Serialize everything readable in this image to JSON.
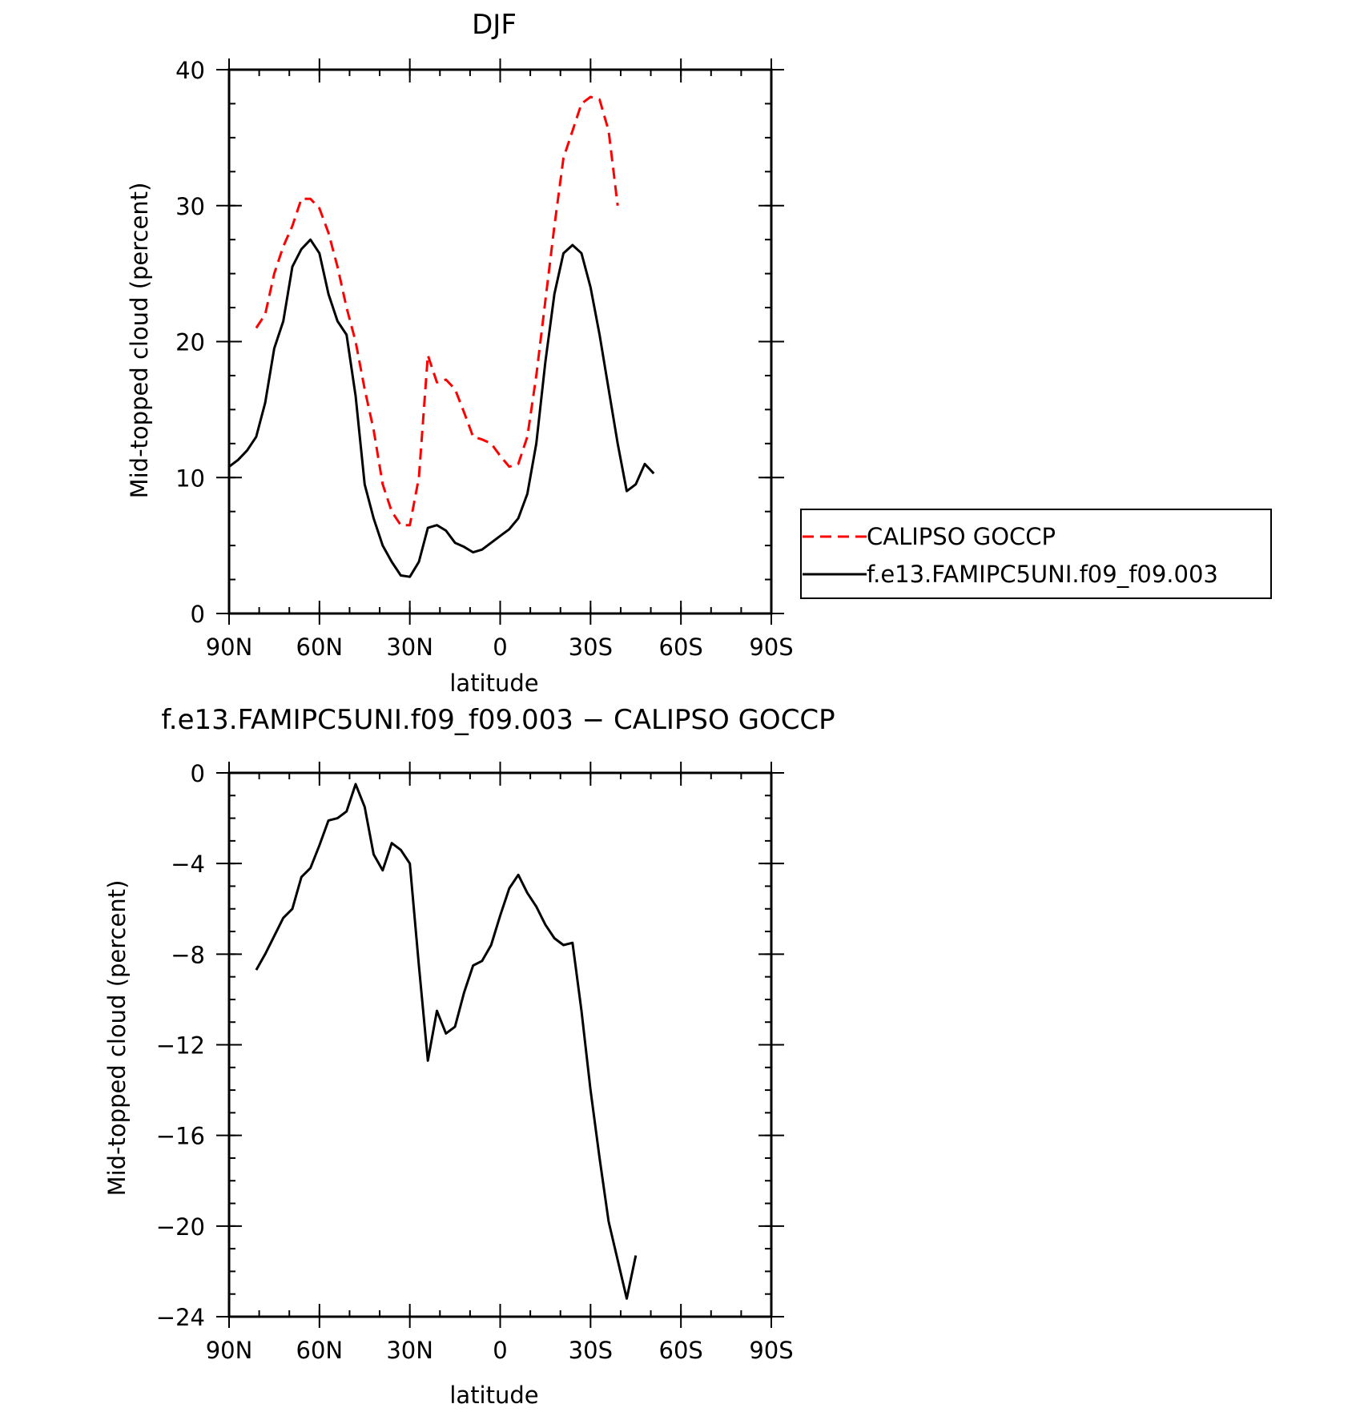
{
  "chart_data": [
    {
      "type": "line",
      "title": "DJF",
      "xlabel": "latitude",
      "ylabel": "Mid-topped cloud (percent)",
      "xlim": [
        90,
        -90
      ],
      "ylim": [
        0,
        40
      ],
      "xticks": [
        90,
        60,
        30,
        0,
        -30,
        -60,
        -90
      ],
      "xtick_labels": [
        "90N",
        "60N",
        "30N",
        "0",
        "30S",
        "60S",
        "90S"
      ],
      "yticks": [
        0,
        10,
        20,
        30,
        40
      ],
      "ytick_labels": [
        "0",
        "10",
        "20",
        "30",
        "40"
      ],
      "legend_position": "right",
      "series": [
        {
          "name": "CALIPSO GOCCP",
          "color": "#ff0000",
          "dash": "dashed",
          "x": [
            81,
            78,
            75,
            72,
            69,
            66,
            63,
            60,
            57,
            54,
            51,
            48,
            45,
            42,
            39,
            36,
            33,
            30,
            27,
            24,
            21,
            18,
            15,
            12,
            9,
            6,
            3,
            0,
            -3,
            -6,
            -9,
            -12,
            -15,
            -18,
            -21,
            -24,
            -27,
            -30,
            -33,
            -36,
            -39,
            -42,
            -45,
            -48,
            -51,
            -54,
            -57,
            -60,
            -63,
            -66,
            -69,
            -72,
            -75,
            -78,
            -81
          ],
          "y": [
            21.0,
            22.0,
            25.0,
            27.0,
            28.5,
            30.5,
            30.5,
            29.8,
            28.0,
            25.5,
            22.5,
            20.0,
            16.5,
            13.5,
            9.5,
            7.5,
            6.5,
            6.5,
            10.0,
            19.0,
            17.0,
            17.2,
            16.5,
            14.8,
            13.0,
            12.8,
            12.5,
            11.6,
            10.8,
            11.0,
            13.0,
            17.5,
            23.0,
            28.5,
            33.5,
            35.5,
            37.5,
            38.0,
            37.8,
            35.5,
            30.0,
            null,
            null,
            null,
            null,
            null,
            null,
            null,
            null,
            null,
            null,
            null,
            null,
            null,
            null
          ]
        },
        {
          "name": "f.e13.FAMIPC5UNI.f09_f09.003",
          "color": "#000000",
          "dash": "solid",
          "x": [
            90,
            87,
            84,
            81,
            78,
            75,
            72,
            69,
            66,
            63,
            60,
            57,
            54,
            51,
            48,
            45,
            42,
            39,
            36,
            33,
            30,
            27,
            24,
            21,
            18,
            15,
            12,
            9,
            6,
            3,
            0,
            -3,
            -6,
            -9,
            -12,
            -15,
            -18,
            -21,
            -24,
            -27,
            -30,
            -33,
            -36,
            -39,
            -42,
            -45,
            -48,
            -51,
            -54,
            -57,
            -60,
            -63,
            -66,
            -69,
            -72,
            -75,
            -78,
            -81,
            -84,
            -87,
            -90
          ],
          "y": [
            10.8,
            11.3,
            12.0,
            13.0,
            15.5,
            19.5,
            21.5,
            25.5,
            26.8,
            27.5,
            26.5,
            23.5,
            21.5,
            20.5,
            16.0,
            9.5,
            7.0,
            5.0,
            3.8,
            2.8,
            2.7,
            3.8,
            6.3,
            6.5,
            6.1,
            5.2,
            4.9,
            4.5,
            4.7,
            5.2,
            5.7,
            6.2,
            7.0,
            8.8,
            12.5,
            18.5,
            23.5,
            26.5,
            27.1,
            26.5,
            24.0,
            20.5,
            16.5,
            12.5,
            9.0,
            9.5,
            11.0,
            10.3,
            null,
            null,
            null,
            null,
            null,
            null,
            null,
            null,
            null,
            null,
            null,
            null,
            null
          ]
        }
      ]
    },
    {
      "type": "line",
      "title": "f.e13.FAMIPC5UNI.f09_f09.003 − CALIPSO GOCCP",
      "xlabel": "latitude",
      "ylabel": "Mid-topped cloud (percent)",
      "xlim": [
        90,
        -90
      ],
      "ylim": [
        -24,
        0
      ],
      "xticks": [
        90,
        60,
        30,
        0,
        -30,
        -60,
        -90
      ],
      "xtick_labels": [
        "90N",
        "60N",
        "30N",
        "0",
        "30S",
        "60S",
        "90S"
      ],
      "yticks": [
        0,
        -4,
        -8,
        -12,
        -16,
        -20,
        -24
      ],
      "ytick_labels": [
        "0",
        "−4",
        "−8",
        "−12",
        "−16",
        "−20",
        "−24"
      ],
      "series": [
        {
          "color": "#000000",
          "dash": "solid",
          "x": [
            81,
            78,
            75,
            72,
            69,
            66,
            63,
            60,
            57,
            54,
            51,
            48,
            45,
            42,
            39,
            36,
            33,
            30,
            27,
            24,
            21,
            18,
            15,
            12,
            9,
            6,
            3,
            0,
            -3,
            -6,
            -9,
            -12,
            -15,
            -18,
            -21,
            -24,
            -27,
            -30,
            -33,
            -36,
            -39,
            -42,
            -45,
            -48,
            -51,
            -54,
            -57,
            -60,
            -63,
            -66,
            -69,
            -72,
            -75,
            -78,
            -81
          ],
          "y": [
            -8.7,
            -8.0,
            -7.2,
            -6.4,
            -6.0,
            -4.6,
            -4.2,
            -3.2,
            -2.1,
            -2.0,
            -1.7,
            -0.5,
            -1.5,
            -3.6,
            -4.3,
            -3.1,
            -3.4,
            -4.0,
            -8.5,
            -12.7,
            -10.5,
            -11.5,
            -11.2,
            -9.7,
            -8.5,
            -8.3,
            -7.6,
            -6.3,
            -5.1,
            -4.5,
            -5.3,
            -5.9,
            -6.7,
            -7.3,
            -7.6,
            -7.5,
            -10.5,
            -14.0,
            -17.0,
            -19.8,
            -21.5,
            -23.2,
            -21.3,
            null,
            null,
            null,
            null,
            null,
            null,
            null,
            null,
            null,
            null,
            null,
            null
          ]
        }
      ]
    }
  ]
}
